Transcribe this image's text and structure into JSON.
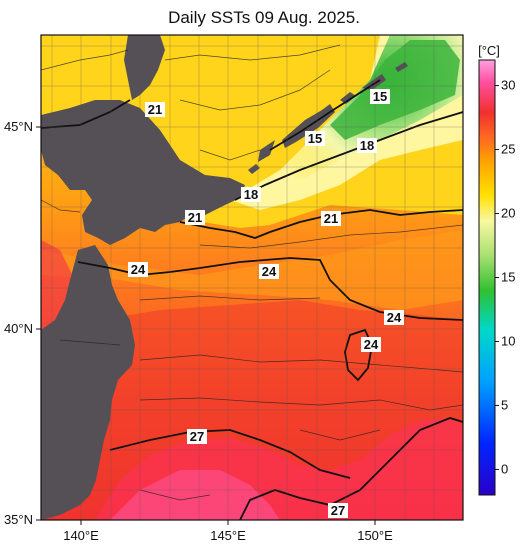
{
  "title": "Daily SSTs 09 Aug. 2025.",
  "map": {
    "lat_labels": [
      "45°N",
      "40°N",
      "35°N"
    ],
    "lon_labels": [
      "140°E",
      "145°E",
      "150°E"
    ],
    "extent": {
      "lon_min": 139.0,
      "lon_max": 153.2,
      "lat_min": 35.0,
      "lat_max": 47.3
    },
    "grid": true,
    "contour_labels": [
      "21",
      "15",
      "15",
      "18",
      "18",
      "21",
      "21",
      "24",
      "24",
      "24",
      "24",
      "27",
      "27"
    ]
  },
  "colorbar": {
    "unit": "[°C]",
    "ticks": [
      "30",
      "25",
      "20",
      "15",
      "10",
      "5",
      "0"
    ],
    "tick_values": [
      30,
      25,
      20,
      15,
      10,
      5,
      0
    ],
    "range": [
      -2,
      32
    ],
    "colors": [
      "#2a00c8",
      "#0026ff",
      "#00a0ff",
      "#00d8c8",
      "#30c030",
      "#a8e070",
      "#f8f8a0",
      "#ffe000",
      "#ffa800",
      "#ff6a20",
      "#f03030",
      "#ff50a0",
      "#ffa0e0"
    ]
  },
  "colors": {
    "land": "#555055",
    "background": "#ffffff"
  }
}
